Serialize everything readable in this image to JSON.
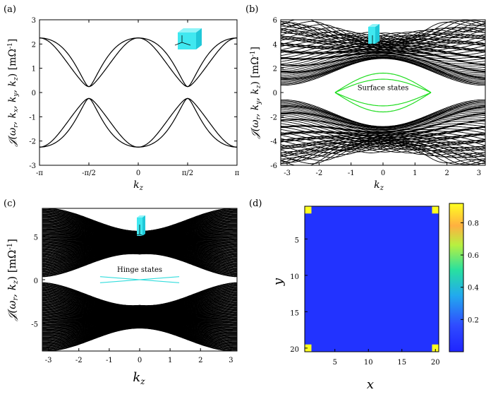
{
  "chart_data": [
    {
      "panel": "(a)",
      "type": "line",
      "xlabel": "k_z",
      "ylabel": "𝒥(ω_r, k_x, k_y, k_z) [mΩ⁻¹]",
      "xlim": [
        -3.1416,
        3.1416
      ],
      "ylim": [
        -3,
        3
      ],
      "xticks": [
        -3.1416,
        -1.5708,
        0,
        1.5708,
        3.1416
      ],
      "xticklabels": [
        "-π",
        "-π/2",
        "0",
        "π/2",
        "π"
      ],
      "yticks": [
        -3,
        -2,
        -1,
        0,
        1,
        2,
        3
      ],
      "color": "#000000",
      "series": [
        {
          "x": [
            -3.1416,
            -2.3562,
            -1.5708,
            -0.7854,
            0,
            0.7854,
            1.5708,
            2.3562,
            3.1416
          ],
          "values": [
            2.25,
            1.66,
            0.25,
            1.66,
            2.25,
            1.66,
            0.25,
            1.66,
            2.25
          ]
        },
        {
          "x": [
            -3.1416,
            -2.3562,
            -1.5708,
            -0.7854,
            0,
            0.7854,
            1.5708,
            2.3562,
            3.1416
          ],
          "values": [
            2.25,
            2.1,
            0.27,
            1.2,
            2.25,
            1.2,
            0.27,
            2.1,
            2.25
          ]
        },
        {
          "x": [
            -3.1416,
            -2.3562,
            -1.5708,
            -0.7854,
            0,
            0.7854,
            1.5708,
            2.3562,
            3.1416
          ],
          "values": [
            -2.25,
            -1.66,
            -0.25,
            -1.66,
            -2.25,
            -1.66,
            -0.25,
            -1.66,
            -2.25
          ]
        },
        {
          "x": [
            -3.1416,
            -2.3562,
            -1.5708,
            -0.7854,
            0,
            0.7854,
            1.5708,
            2.3562,
            3.1416
          ],
          "values": [
            -2.25,
            -2.1,
            -0.27,
            -1.2,
            -2.25,
            -1.2,
            -0.27,
            -2.1,
            -2.25
          ]
        }
      ],
      "inset": "cube-icon"
    },
    {
      "panel": "(b)",
      "type": "line",
      "xlabel": "k_z",
      "ylabel": "𝒥(ω_r, k_y, k_z) [mΩ⁻¹]",
      "xlim": [
        -3.2,
        3.2
      ],
      "ylim": [
        -6,
        6
      ],
      "xticks": [
        -3,
        -2,
        -1,
        0,
        1,
        2,
        3
      ],
      "yticks": [
        -6,
        -4,
        -2,
        0,
        2,
        4,
        6
      ],
      "bulk_color": "#000000",
      "bulk_bands": {
        "upper": {
          "inner_min": 0.5,
          "inner_max": 3.0,
          "outer_max": 5.9
        },
        "lower": {
          "inner_min": -0.5,
          "inner_max": -3.0,
          "outer_max": -5.9
        }
      },
      "annotation": {
        "text": "Surface states",
        "color": "#22dd22"
      },
      "surface_states": {
        "kz_range": [
          -1.5,
          1.5
        ],
        "peak": [
          1.6,
          1.1,
          -1.1,
          -1.6
        ]
      },
      "inset": "slab-icon"
    },
    {
      "panel": "(c)",
      "type": "line",
      "xlabel": "k_z",
      "ylabel": "𝒥(ω_r, k_z) [mΩ⁻¹]",
      "xlim": [
        -3.2,
        3.2
      ],
      "ylim": [
        -8.2,
        8.2
      ],
      "xticks": [
        -3,
        -2,
        -1,
        0,
        1,
        2,
        3
      ],
      "yticks": [
        -5,
        0,
        5
      ],
      "bulk_color": "#000000",
      "annotation": {
        "text": "Hinge states",
        "color": "#33dddd"
      },
      "hinge_states": {
        "kz_range": [
          -1.3,
          1.3
        ],
        "values_at_edge": 0.35
      },
      "inset": "rod-icon"
    },
    {
      "panel": "(d)",
      "type": "heatmap",
      "xlabel": "x",
      "ylabel": "y",
      "xlim": [
        0.5,
        20.5
      ],
      "ylim": [
        0.5,
        20.5
      ],
      "xticks": [
        5,
        10,
        15,
        20
      ],
      "yticks": [
        5,
        10,
        15,
        20
      ],
      "colorbar_ticks": [
        0.2,
        0.4,
        0.6,
        0.8
      ],
      "colorbar_range": [
        0,
        0.92
      ],
      "background_value": 0.02,
      "corner_cells": [
        {
          "x": 1,
          "y": 1,
          "value": 0.9
        },
        {
          "x": 20,
          "y": 1,
          "value": 0.9
        },
        {
          "x": 1,
          "y": 20,
          "value": 0.9
        },
        {
          "x": 20,
          "y": 20,
          "value": 0.9
        }
      ]
    }
  ]
}
